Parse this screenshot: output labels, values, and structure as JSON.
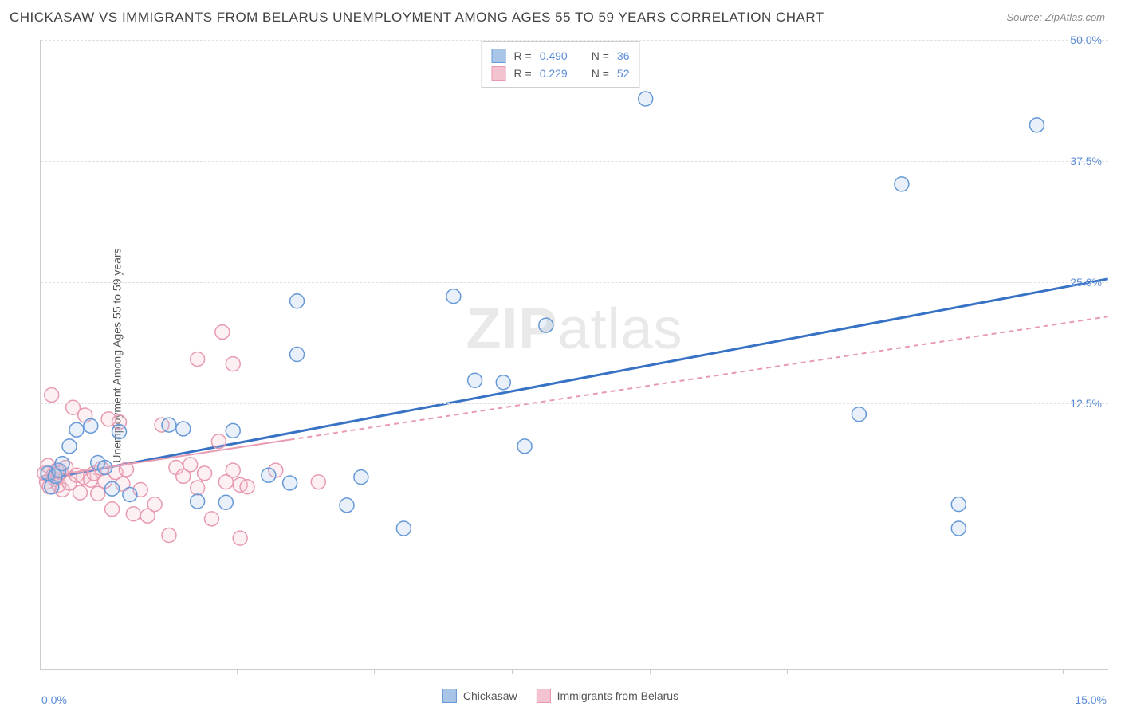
{
  "title": "CHICKASAW VS IMMIGRANTS FROM BELARUS UNEMPLOYMENT AMONG AGES 55 TO 59 YEARS CORRELATION CHART",
  "source": "Source: ZipAtlas.com",
  "ylabel": "Unemployment Among Ages 55 to 59 years",
  "watermark_zip": "ZIP",
  "watermark_atlas": "atlas",
  "chart": {
    "type": "scatter",
    "xlim": [
      0,
      15
    ],
    "ylim": [
      -15,
      50
    ],
    "ytick_labels": [
      "12.5%",
      "25.0%",
      "37.5%",
      "50.0%"
    ],
    "ytick_values": [
      12.5,
      25.0,
      37.5,
      50.0
    ],
    "xtick_values": [
      2.75,
      4.68,
      6.62,
      8.55,
      10.48,
      12.42,
      14.35
    ],
    "x_origin_label": "0.0%",
    "x_max_label": "15.0%",
    "background_color": "#ffffff",
    "grid_color": "#e0e0e0",
    "point_radius": 9,
    "point_stroke_width": 1.5,
    "point_fill_opacity": 0.25,
    "series": [
      {
        "name": "Chickasaw",
        "color_stroke": "#6699d8",
        "color_fill": "#a8c5e8",
        "trend": {
          "color": "#3872c4",
          "width": 3,
          "dash": "none",
          "x1": 0,
          "y1": 4.5,
          "x2": 15,
          "y2": 25.3
        },
        "R": "0.490",
        "N": "36",
        "points": [
          [
            0.1,
            5.2
          ],
          [
            0.15,
            3.8
          ],
          [
            0.2,
            4.9
          ],
          [
            0.25,
            5.5
          ],
          [
            0.3,
            6.2
          ],
          [
            0.4,
            8.0
          ],
          [
            0.5,
            9.7
          ],
          [
            0.7,
            10.1
          ],
          [
            0.8,
            6.3
          ],
          [
            0.9,
            5.8
          ],
          [
            1.0,
            3.6
          ],
          [
            1.1,
            9.5
          ],
          [
            1.25,
            3.0
          ],
          [
            1.8,
            10.2
          ],
          [
            2.0,
            9.8
          ],
          [
            2.2,
            2.3
          ],
          [
            2.6,
            2.2
          ],
          [
            2.7,
            9.6
          ],
          [
            3.2,
            5.0
          ],
          [
            3.5,
            4.2
          ],
          [
            3.6,
            17.5
          ],
          [
            3.6,
            23.0
          ],
          [
            4.3,
            1.9
          ],
          [
            4.5,
            4.8
          ],
          [
            5.1,
            -0.5
          ],
          [
            5.8,
            23.5
          ],
          [
            6.1,
            14.8
          ],
          [
            6.5,
            14.6
          ],
          [
            6.8,
            8.0
          ],
          [
            7.1,
            20.5
          ],
          [
            8.5,
            43.9
          ],
          [
            11.5,
            11.3
          ],
          [
            12.1,
            35.1
          ],
          [
            12.9,
            -0.5
          ],
          [
            12.9,
            2.0
          ],
          [
            14.0,
            41.2
          ]
        ]
      },
      {
        "name": "Immigrants from Belarus",
        "color_stroke": "#e89ab0",
        "color_fill": "#f4c3d0",
        "trend": {
          "color": "#e89ab0",
          "width": 2,
          "dash": "6,5",
          "x1": 0,
          "y1": 4.8,
          "x2": 15,
          "y2": 21.4
        },
        "trend_solid_end": 3.5,
        "R": "0.229",
        "N": "52",
        "points": [
          [
            0.05,
            5.2
          ],
          [
            0.08,
            4.3
          ],
          [
            0.1,
            6.0
          ],
          [
            0.12,
            3.8
          ],
          [
            0.15,
            13.3
          ],
          [
            0.18,
            5.1
          ],
          [
            0.2,
            4.6
          ],
          [
            0.22,
            5.5
          ],
          [
            0.25,
            4.0
          ],
          [
            0.28,
            5.3
          ],
          [
            0.3,
            3.5
          ],
          [
            0.35,
            5.8
          ],
          [
            0.4,
            4.2
          ],
          [
            0.45,
            12.0
          ],
          [
            0.5,
            5.0
          ],
          [
            0.55,
            3.2
          ],
          [
            0.6,
            4.8
          ],
          [
            0.62,
            11.2
          ],
          [
            0.7,
            4.5
          ],
          [
            0.75,
            5.2
          ],
          [
            0.8,
            3.1
          ],
          [
            0.85,
            5.7
          ],
          [
            0.9,
            4.4
          ],
          [
            0.95,
            10.8
          ],
          [
            1.0,
            1.5
          ],
          [
            1.05,
            5.3
          ],
          [
            1.1,
            10.5
          ],
          [
            1.15,
            4.1
          ],
          [
            1.2,
            5.6
          ],
          [
            1.3,
            1.0
          ],
          [
            1.4,
            3.5
          ],
          [
            1.5,
            0.8
          ],
          [
            1.6,
            2.0
          ],
          [
            1.7,
            10.2
          ],
          [
            1.8,
            -1.2
          ],
          [
            1.9,
            5.8
          ],
          [
            2.0,
            4.9
          ],
          [
            2.1,
            6.1
          ],
          [
            2.2,
            3.7
          ],
          [
            2.2,
            17.0
          ],
          [
            2.3,
            5.2
          ],
          [
            2.4,
            0.5
          ],
          [
            2.5,
            8.5
          ],
          [
            2.55,
            19.8
          ],
          [
            2.6,
            4.3
          ],
          [
            2.7,
            5.5
          ],
          [
            2.7,
            16.5
          ],
          [
            2.8,
            4.0
          ],
          [
            2.8,
            -1.5
          ],
          [
            2.9,
            3.8
          ],
          [
            3.3,
            5.5
          ],
          [
            3.9,
            4.3
          ]
        ]
      }
    ]
  },
  "legend_top": [
    {
      "swatch_fill": "#a8c5e8",
      "swatch_stroke": "#6699d8",
      "R_label": "R =",
      "R_value": "0.490",
      "N_label": "N =",
      "N_value": "36"
    },
    {
      "swatch_fill": "#f4c3d0",
      "swatch_stroke": "#e89ab0",
      "R_label": "R =",
      "R_value": "0.229",
      "N_label": "N =",
      "N_value": "52"
    }
  ],
  "legend_bottom": [
    {
      "swatch_fill": "#a8c5e8",
      "swatch_stroke": "#6699d8",
      "label": "Chickasaw"
    },
    {
      "swatch_fill": "#f4c3d0",
      "swatch_stroke": "#e89ab0",
      "label": "Immigrants from Belarus"
    }
  ]
}
